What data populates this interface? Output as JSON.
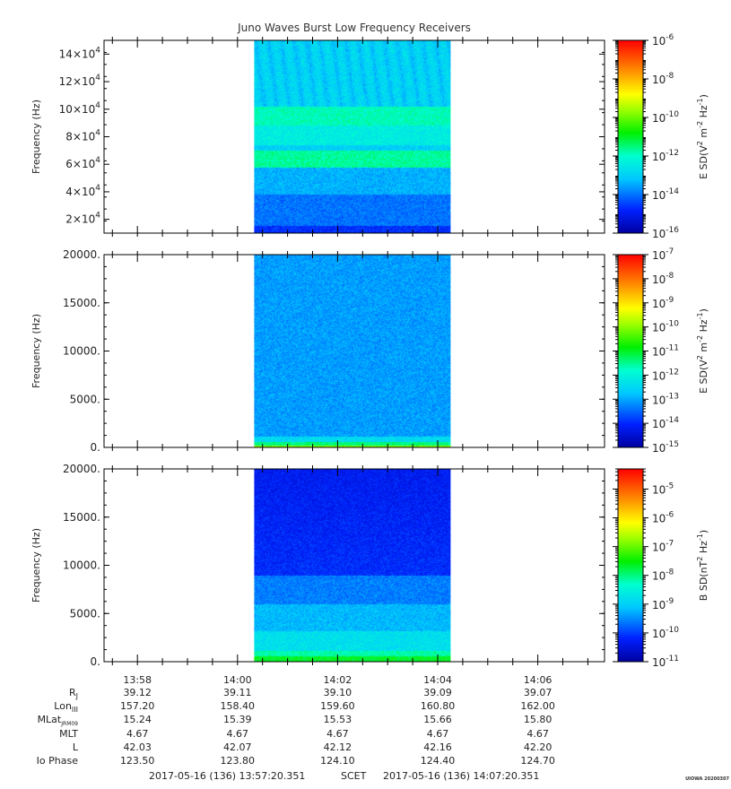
{
  "title": "Juno Waves Burst Low Frequency Receivers",
  "chart_data": [
    {
      "type": "heatmap",
      "panel": "top",
      "ylabel": "Frequency (Hz)",
      "ylim": [
        10000,
        150000
      ],
      "yticks": [
        {
          "v": 20000,
          "m": "2",
          "e": "4"
        },
        {
          "v": 40000,
          "m": "4",
          "e": "4"
        },
        {
          "v": 60000,
          "m": "6",
          "e": "4"
        },
        {
          "v": 80000,
          "m": "8",
          "e": "4"
        },
        {
          "v": 100000,
          "m": "10",
          "e": "4"
        },
        {
          "v": 120000,
          "m": "12",
          "e": "4"
        },
        {
          "v": 140000,
          "m": "14",
          "e": "4"
        }
      ],
      "data_time_range": [
        "14:00:20",
        "14:04:15"
      ],
      "colorbar": {
        "label": "E SD (V² m⁻² Hz⁻¹)",
        "label_parts": [
          "E SD(V",
          "2",
          " m",
          "-2",
          " Hz",
          "-1",
          ")"
        ],
        "scale": "log",
        "range_exp": [
          -16,
          -6
        ],
        "ticks_exp": [
          "-6",
          "-8",
          "-10",
          "-12",
          "-14",
          "-16"
        ]
      }
    },
    {
      "type": "heatmap",
      "panel": "middle",
      "ylabel": "Frequency (Hz)",
      "ylim": [
        0,
        20000
      ],
      "yticks": [
        {
          "v": 0,
          "t": "0."
        },
        {
          "v": 5000,
          "t": "5000."
        },
        {
          "v": 10000,
          "t": "10000."
        },
        {
          "v": 15000,
          "t": "15000."
        },
        {
          "v": 20000,
          "t": "20000."
        }
      ],
      "data_time_range": [
        "14:00:20",
        "14:04:15"
      ],
      "colorbar": {
        "label": "E SD (V² m⁻² Hz⁻¹)",
        "label_parts": [
          "E SD(V",
          "2",
          " m",
          "-2",
          " Hz",
          "-1",
          ")"
        ],
        "scale": "log",
        "range_exp": [
          -15,
          -7
        ],
        "ticks_exp": [
          "-7",
          "-8",
          "-9",
          "-10",
          "-11",
          "-12",
          "-13",
          "-14",
          "-15"
        ]
      }
    },
    {
      "type": "heatmap",
      "panel": "bottom",
      "ylabel": "Frequency (Hz)",
      "ylim": [
        0,
        20000
      ],
      "yticks": [
        {
          "v": 0,
          "t": "0."
        },
        {
          "v": 5000,
          "t": "5000."
        },
        {
          "v": 10000,
          "t": "10000."
        },
        {
          "v": 15000,
          "t": "15000."
        },
        {
          "v": 20000,
          "t": "20000."
        }
      ],
      "data_time_range": [
        "14:00:20",
        "14:04:15"
      ],
      "colorbar": {
        "label": "B SD (nT² Hz⁻¹)",
        "label_parts": [
          "B SD(nT",
          "2",
          " Hz",
          "-1",
          ")"
        ],
        "scale": "log",
        "range_exp": [
          -11,
          -4.3
        ],
        "ticks_exp": [
          "-5",
          "-6",
          "-7",
          "-8",
          "-9",
          "-10",
          "-11"
        ]
      }
    }
  ],
  "time_axis": {
    "start": "13:57:20",
    "end": "14:07:20",
    "ticks": [
      "13:58",
      "14:00",
      "14:02",
      "14:04",
      "14:06"
    ]
  },
  "ephemeris": [
    {
      "label": "R",
      "sub": "J",
      "values": [
        "39.12",
        "39.11",
        "39.10",
        "39.09",
        "39.07"
      ]
    },
    {
      "label": "Lon",
      "sub": "III",
      "values": [
        "157.20",
        "158.40",
        "159.60",
        "160.80",
        "162.00"
      ]
    },
    {
      "label": "MLat",
      "sub": "JRM09",
      "values": [
        "15.24",
        "15.39",
        "15.53",
        "15.66",
        "15.80"
      ]
    },
    {
      "label": "MLT",
      "sub": "",
      "values": [
        "4.67",
        "4.67",
        "4.67",
        "4.67",
        "4.67"
      ]
    },
    {
      "label": "L",
      "sub": "",
      "values": [
        "42.03",
        "42.07",
        "42.12",
        "42.16",
        "42.20"
      ]
    },
    {
      "label": "Io Phase",
      "sub": "",
      "values": [
        "123.50",
        "123.80",
        "124.10",
        "124.40",
        "124.70"
      ]
    }
  ],
  "footer": {
    "start": "2017-05-16 (136) 13:57:20.351",
    "scet": "SCET",
    "end": "2017-05-16 (136) 14:07:20.351"
  },
  "stamp": "UIOWA 20200307"
}
